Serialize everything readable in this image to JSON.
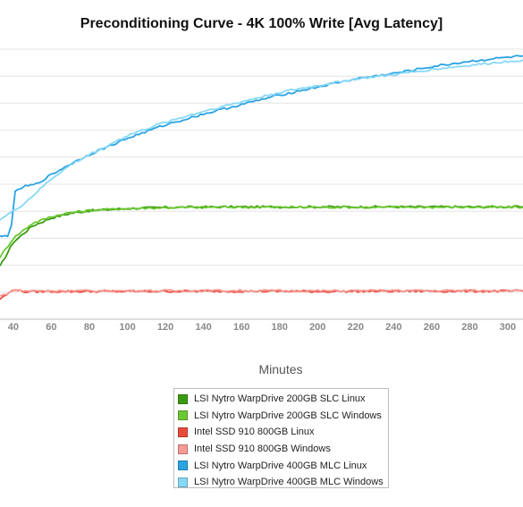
{
  "chart_data": {
    "type": "line",
    "title": "Preconditioning Curve - 4K 100% Write [Avg Latency]",
    "xlabel": "Minutes",
    "ylabel": "",
    "xlim": [
      33,
      308
    ],
    "ylim": [
      0,
      10
    ],
    "xticks": [
      40,
      60,
      80,
      100,
      120,
      140,
      160,
      180,
      200,
      220,
      240,
      260,
      280,
      300
    ],
    "grid": true,
    "legend_position": "bottom",
    "series": [
      {
        "name": "LSI Nytro WarpDrive 200GB SLC Linux",
        "color": "#3c9a12",
        "x": [
          33,
          40,
          50,
          60,
          70,
          80,
          100,
          120,
          150,
          200,
          250,
          308
        ],
        "y": [
          1.95,
          2.85,
          3.45,
          3.75,
          3.92,
          4.02,
          4.1,
          4.14,
          4.16,
          4.16,
          4.16,
          4.16
        ]
      },
      {
        "name": "LSI Nytro WarpDrive 200GB SLC Windows",
        "color": "#6cc934",
        "x": [
          33,
          40,
          50,
          60,
          70,
          80,
          100,
          120,
          150,
          200,
          250,
          308
        ],
        "y": [
          2.3,
          3.0,
          3.55,
          3.8,
          3.95,
          4.03,
          4.1,
          4.13,
          4.15,
          4.15,
          4.15,
          4.15
        ]
      },
      {
        "name": "Intel SSD 910 800GB Linux",
        "color": "#ea4a3c",
        "x": [
          33,
          38,
          41,
          45,
          60,
          100,
          150,
          200,
          250,
          308
        ],
        "y": [
          0.75,
          0.98,
          1.12,
          1.02,
          1.03,
          1.03,
          1.04,
          1.03,
          1.04,
          1.04
        ]
      },
      {
        "name": "Intel SSD 910 800GB Windows",
        "color": "#f79a94",
        "x": [
          33,
          38,
          41,
          45,
          60,
          100,
          150,
          200,
          250,
          308
        ],
        "y": [
          0.85,
          1.0,
          1.1,
          1.05,
          1.05,
          1.05,
          1.06,
          1.05,
          1.06,
          1.06
        ]
      },
      {
        "name": "LSI Nytro WarpDrive 400GB MLC Linux",
        "color": "#2aa3e2",
        "x": [
          33,
          37,
          39,
          41,
          45,
          52,
          60,
          70,
          80,
          100,
          120,
          140,
          160,
          180,
          200,
          220,
          240,
          260,
          280,
          300,
          308
        ],
        "y": [
          3.05,
          3.1,
          3.5,
          4.7,
          4.9,
          5.0,
          5.35,
          5.75,
          6.1,
          6.7,
          7.2,
          7.6,
          7.95,
          8.3,
          8.6,
          8.9,
          9.1,
          9.35,
          9.55,
          9.7,
          9.75
        ]
      },
      {
        "name": "LSI Nytro WarpDrive 400GB MLC Windows",
        "color": "#86d8f7",
        "x": [
          33,
          40,
          45,
          50,
          60,
          70,
          80,
          100,
          120,
          140,
          160,
          180,
          200,
          220,
          240,
          260,
          280,
          300,
          308
        ],
        "y": [
          3.7,
          4.0,
          4.25,
          4.55,
          5.2,
          5.7,
          6.1,
          6.8,
          7.3,
          7.7,
          8.05,
          8.4,
          8.65,
          8.9,
          9.05,
          9.25,
          9.4,
          9.55,
          9.6
        ]
      }
    ]
  }
}
